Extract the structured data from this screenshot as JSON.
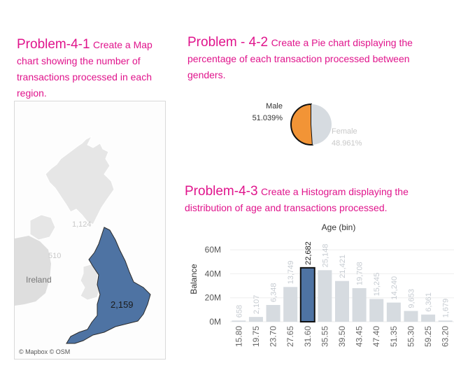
{
  "titles": {
    "p1_num": "Problem-4-1",
    "p1_text": "Create a Map chart showing the number of transactions processed in each region.",
    "p2_num": "Problem - 4-2",
    "p2_text": "Create a Pie chart displaying the percentage of each transaction processed between genders.",
    "p3_num": "Problem-4-3",
    "p3_text": "Create a Histogram displaying the distribution of age and transactions processed."
  },
  "map": {
    "england_value": "2,159",
    "scotland_value": "1,124",
    "wales_value": "510",
    "ireland_label": "Ireland",
    "attribution": "© Mapbox © OSM",
    "colors": {
      "england": "#4e73a3",
      "other": "#e6e6e6",
      "land": "#dedede"
    }
  },
  "chart_data": [
    {
      "type": "pie",
      "slices": [
        {
          "label": "Male",
          "value": 51.039,
          "display": "51.039%",
          "color": "#f29436",
          "highlighted": true
        },
        {
          "label": "Female",
          "value": 48.961,
          "display": "48.961%",
          "color": "#d6dbe0",
          "highlighted": false
        }
      ]
    },
    {
      "type": "bar",
      "xlabel": "Age (bin)",
      "ylabel": "Balance",
      "categories": [
        "15.80",
        "19.75",
        "23.70",
        "27.65",
        "31.60",
        "35.55",
        "39.50",
        "43.45",
        "47.40",
        "51.35",
        "55.30",
        "59.25",
        "63.20"
      ],
      "values": [
        0.658,
        2.107,
        6.348,
        13.749,
        22.682,
        25.148,
        21.421,
        19.708,
        15.245,
        14.24,
        9.653,
        6.361,
        1.679
      ],
      "value_labels": [
        "658",
        "2,107",
        "6,348",
        "13,749",
        "22,682",
        "25,148",
        "21,421",
        "19,708",
        "15,245",
        "14,240",
        "9,653",
        "6,361",
        "1,679"
      ],
      "balances": [
        1,
        4,
        14,
        29,
        45,
        43,
        34,
        28,
        19,
        16,
        9,
        6,
        1
      ],
      "highlight_index": 4,
      "yticks": [
        "0M",
        "20M",
        "40M",
        "60M"
      ],
      "ytick_values": [
        0,
        20,
        40,
        60
      ],
      "ylim": [
        0,
        70
      ],
      "colors": {
        "bar": "#d6dbe0",
        "highlight": "#4e73a3",
        "label": "#c6cbd1",
        "label_highlight": "#222222"
      }
    }
  ]
}
